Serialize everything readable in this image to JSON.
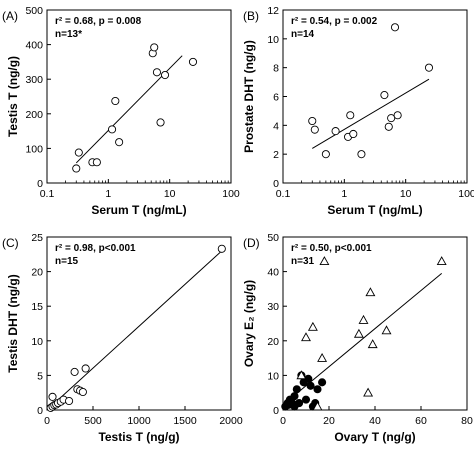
{
  "chart_data": [
    {
      "panel": "(A)",
      "type": "scatter",
      "x_scale": "log",
      "xlim": [
        0.1,
        100
      ],
      "ylim": [
        0,
        500
      ],
      "x_ticks": [
        "0.1",
        "1",
        "10",
        "100"
      ],
      "y_ticks": [
        "0",
        "100",
        "200",
        "300",
        "400",
        "500"
      ],
      "xlabel": "Serum T (ng/mL)",
      "ylabel": "Testis T (ng/g)",
      "annotations": [
        "r² = 0.68, p = 0.008",
        "n=13*"
      ],
      "series": [
        {
          "marker": "open-circle",
          "x": [
            0.3,
            0.33,
            0.55,
            0.65,
            1.15,
            1.3,
            1.5,
            5.3,
            5.6,
            6.2,
            7.1,
            8.4,
            24.0
          ],
          "y": [
            42,
            88,
            60,
            60,
            155,
            237,
            118,
            375,
            392,
            320,
            175,
            312,
            350
          ]
        }
      ],
      "regression": {
        "x": [
          0.3,
          16.0
        ],
        "y": [
          58,
          368
        ]
      }
    },
    {
      "panel": "(B)",
      "type": "scatter",
      "x_scale": "log",
      "xlim": [
        0.1,
        100
      ],
      "ylim": [
        0,
        12
      ],
      "x_ticks": [
        "0.1",
        "1",
        "10",
        "100"
      ],
      "y_ticks": [
        "0",
        "2",
        "4",
        "6",
        "8",
        "10",
        "12"
      ],
      "xlabel": "Serum T (ng/mL)",
      "ylabel": "Prostate DHT (ng/g)",
      "annotations": [
        "r² = 0.54, p = 0.002",
        "n=14"
      ],
      "series": [
        {
          "marker": "open-circle",
          "x": [
            0.3,
            0.33,
            0.5,
            0.72,
            1.15,
            1.25,
            1.4,
            1.9,
            4.5,
            5.3,
            5.8,
            6.7,
            7.4,
            24.0
          ],
          "y": [
            4.3,
            3.7,
            2.0,
            3.6,
            3.2,
            4.7,
            3.4,
            2.0,
            6.1,
            3.9,
            4.5,
            10.8,
            4.7,
            8.0
          ]
        }
      ],
      "regression": {
        "x": [
          0.3,
          24.0
        ],
        "y": [
          2.4,
          7.2
        ]
      }
    },
    {
      "panel": "(C)",
      "type": "scatter",
      "xlim": [
        0,
        2000
      ],
      "ylim": [
        0,
        25
      ],
      "x_ticks": [
        "0",
        "500",
        "1000",
        "1500",
        "2000"
      ],
      "y_ticks": [
        "0",
        "5",
        "10",
        "15",
        "20",
        "25"
      ],
      "xlabel": "Testis T (ng/g)",
      "ylabel": "Testis DHT (ng/g)",
      "annotations": [
        "r² = 0.98, p<0.001",
        "n=15"
      ],
      "series": [
        {
          "marker": "open-circle",
          "x": [
            40,
            60,
            80,
            100,
            120,
            150,
            180,
            240,
            300,
            330,
            360,
            390,
            60,
            420,
            1900
          ],
          "y": [
            0.3,
            0.5,
            0.7,
            0.8,
            1.0,
            1.2,
            1.5,
            1.3,
            5.5,
            3.0,
            2.8,
            2.6,
            1.9,
            6.0,
            23.3
          ]
        }
      ],
      "regression": {
        "x": [
          0,
          1900
        ],
        "y": [
          0.0,
          23.0
        ]
      }
    },
    {
      "panel": "(D)",
      "type": "scatter",
      "xlim": [
        0,
        80
      ],
      "ylim": [
        0,
        50
      ],
      "x_ticks": [
        "0",
        "20",
        "40",
        "60",
        "80"
      ],
      "y_ticks": [
        "0",
        "10",
        "20",
        "30",
        "40",
        "50"
      ],
      "xlabel": "Ovary T (ng/g)",
      "ylabel": "Ovary E₂ (ng/g)",
      "annotations": [
        "r² = 0.50, p<0.001",
        "n=31"
      ],
      "series": [
        {
          "marker": "filled-circle",
          "x": [
            1,
            2,
            2.5,
            3,
            4,
            5,
            5,
            6,
            7,
            8,
            9,
            10,
            11,
            12,
            13,
            14,
            15,
            17
          ],
          "y": [
            1,
            2,
            1.5,
            3,
            2,
            4,
            1,
            6,
            2,
            10,
            8,
            3,
            9,
            7,
            1,
            2,
            6,
            8
          ]
        },
        {
          "marker": "open-triangle",
          "x": [
            8,
            10,
            13,
            18,
            17,
            33,
            35,
            38,
            39,
            45,
            69,
            37,
            15
          ],
          "y": [
            10,
            21,
            24,
            43,
            15,
            22,
            26,
            34,
            19,
            23,
            43,
            5,
            1
          ]
        }
      ],
      "regression": {
        "x": [
          0,
          69
        ],
        "y": [
          1.5,
          39.5
        ]
      }
    }
  ]
}
